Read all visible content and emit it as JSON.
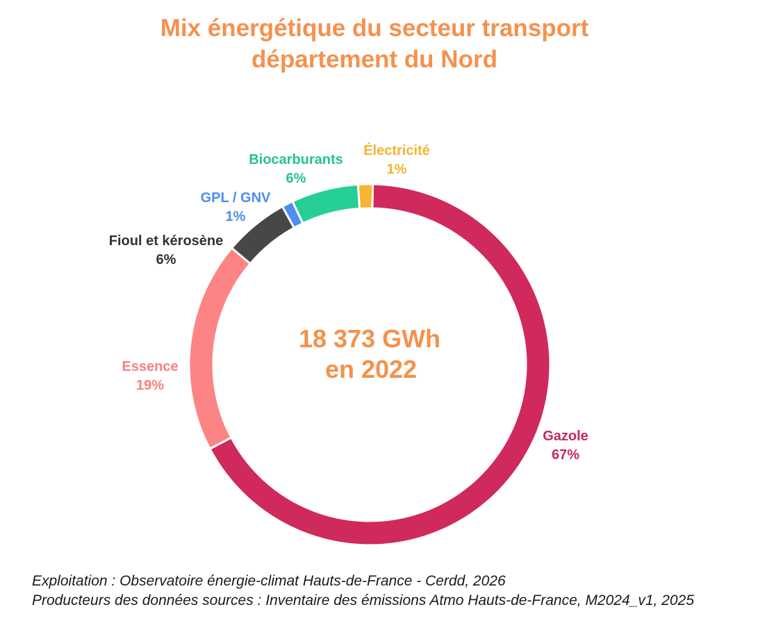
{
  "title": {
    "line1": "Mix énergétique du secteur transport",
    "line2": "département du Nord"
  },
  "chart_data": {
    "type": "pie",
    "subtype": "donut",
    "center_label": {
      "line1": "18 373 GWh",
      "line2": "en 2022"
    },
    "total_gwh": 18373,
    "year": 2022,
    "slices": [
      {
        "name": "Gazole",
        "label": "Gazole",
        "percent_label": "67%",
        "value": 67.0,
        "color": "#d0295b",
        "text_color": "#c7285a"
      },
      {
        "name": "Essence",
        "label": "Essence",
        "percent_label": "19%",
        "value": 18.9,
        "color": "#fd8484",
        "text_color": "#f97f80"
      },
      {
        "name": "Fioul et kérosène",
        "label": "Fioul et kérosène",
        "percent_label": "6%",
        "value": 5.8,
        "color": "#474747",
        "text_color": "#333333"
      },
      {
        "name": "GPL / GNV",
        "label": "GPL / GNV",
        "percent_label": "1%",
        "value": 1.0,
        "color": "#4d8ef0",
        "text_color": "#4b8ded"
      },
      {
        "name": "Biocarburants",
        "label": "Biocarburants",
        "percent_label": "6%",
        "value": 6.0,
        "color": "#26cf97",
        "text_color": "#22c58f"
      },
      {
        "name": "Électricité",
        "label": "Électricité",
        "percent_label": "1%",
        "value": 1.3,
        "color": "#f7b534",
        "text_color": "#f5b330"
      }
    ]
  },
  "footer": {
    "line1": "Exploitation : Observatoire énergie-climat Hauts-de-France - Cerdd, 2026",
    "line2": "Producteurs des données sources : Inventaire des émissions Atmo Hauts-de-France, M2024_v1, 2025"
  },
  "colors": {
    "title": "#f5914d",
    "center_label": "#f5914d",
    "footer": "#1a1a1a"
  }
}
